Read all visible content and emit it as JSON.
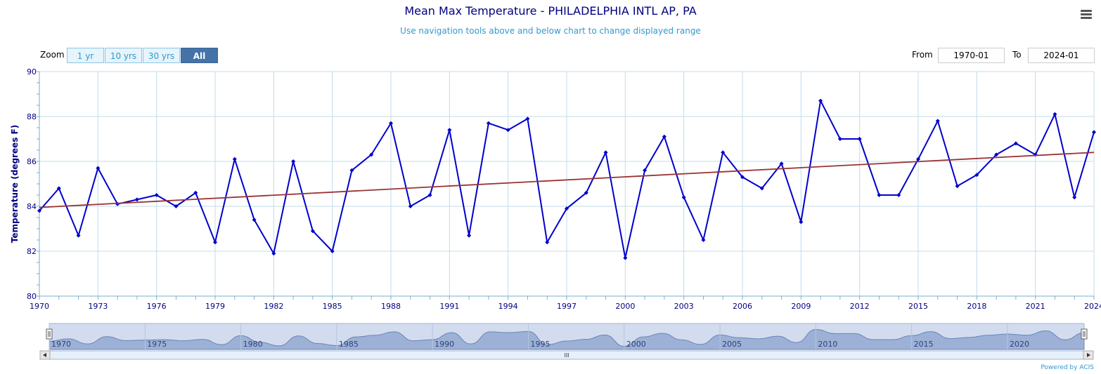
{
  "chart_data": {
    "type": "line",
    "title": "Mean Max Temperature - PHILADELPHIA INTL AP, PA",
    "subtitle": "Use navigation tools above and below chart to change displayed range",
    "ylabel": "Temperature (degrees F)",
    "xlabel": "",
    "ylim": [
      80,
      90
    ],
    "xlim": [
      1970,
      2024
    ],
    "yticks": [
      80,
      82,
      84,
      86,
      88,
      90
    ],
    "xticks": [
      1970,
      1973,
      1976,
      1979,
      1982,
      1985,
      1988,
      1991,
      1994,
      1997,
      2000,
      2003,
      2006,
      2009,
      2012,
      2015,
      2018,
      2021,
      2024
    ],
    "grid": true,
    "legend": "none",
    "series": [
      {
        "color": "#0000cc",
        "x": [
          1970,
          1971,
          1972,
          1973,
          1974,
          1975,
          1976,
          1977,
          1978,
          1979,
          1980,
          1981,
          1982,
          1983,
          1984,
          1985,
          1986,
          1987,
          1988,
          1989,
          1990,
          1991,
          1992,
          1993,
          1994,
          1995,
          1996,
          1997,
          1998,
          1999,
          2000,
          2001,
          2002,
          2003,
          2004,
          2005,
          2006,
          2007,
          2008,
          2009,
          2010,
          2011,
          2012,
          2013,
          2014,
          2015,
          2016,
          2017,
          2018,
          2019,
          2020,
          2021,
          2022,
          2023,
          2024
        ],
        "values": [
          83.8,
          84.8,
          82.7,
          85.7,
          84.1,
          84.3,
          84.5,
          84.0,
          84.6,
          82.4,
          86.1,
          83.4,
          81.9,
          86.0,
          82.9,
          82.0,
          85.6,
          86.3,
          87.7,
          84.0,
          84.5,
          87.4,
          82.7,
          87.7,
          87.4,
          87.9,
          82.4,
          83.9,
          84.6,
          86.4,
          81.7,
          85.6,
          87.1,
          84.4,
          82.5,
          86.4,
          85.3,
          84.8,
          85.9,
          83.3,
          88.7,
          87.0,
          87.0,
          84.5,
          84.5,
          86.1,
          87.8,
          84.9,
          85.4,
          86.3,
          86.8,
          86.3,
          88.1,
          84.4,
          87.3
        ]
      },
      {
        "color": "#993333",
        "x": [
          1970,
          2024
        ],
        "values": [
          83.95,
          86.4
        ]
      }
    ],
    "navigator": {
      "xticks": [
        1970,
        1975,
        1980,
        1985,
        1990,
        1995,
        2000,
        2005,
        2010,
        2015,
        2020
      ],
      "scrollbar_grip": "III"
    }
  },
  "toolbar": {
    "zoom_label": "Zoom",
    "zoom_buttons": [
      "1 yr",
      "10 yrs",
      "30 yrs",
      "All"
    ],
    "active_zoom": "All",
    "from_label": "From",
    "from_value": "1970-01",
    "to_label": "To",
    "to_value": "2024-01"
  },
  "footer": {
    "credit": "Powered by ACIS"
  },
  "icons": {
    "menu": "hamburger-menu-icon"
  }
}
